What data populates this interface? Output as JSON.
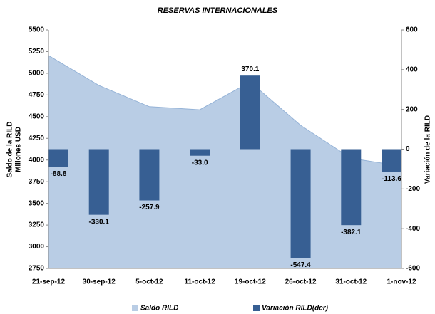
{
  "chart_data": {
    "type": "area-bar",
    "title": "RESERVAS INTERNACIONALES",
    "y_label": [
      "Saldo de la RILD",
      "Millones USD"
    ],
    "y2_label": "Variación de la RILD",
    "categories": [
      "21-sep-12",
      "30-sep-12",
      "5-oct-12",
      "11-oct-12",
      "19-oct-12",
      "26-oct-12",
      "31-oct-12",
      "1-nov-12"
    ],
    "series": [
      {
        "name": "Saldo RILD",
        "type": "area",
        "color": "#b9cde5",
        "values": [
          5205,
          4860,
          4615,
          4580,
          4900,
          4400,
          4020,
          3930
        ]
      },
      {
        "name": "Variación RILD(der)",
        "type": "bar",
        "axis": "y2",
        "color": "#375f93",
        "values": [
          -88.8,
          -330.1,
          -257.9,
          -33.0,
          370.1,
          -547.4,
          -382.1,
          -113.6
        ],
        "value_labels": [
          "-88.8",
          "-330.1",
          "-257.9",
          "-33.0",
          "370.1",
          "-547.4",
          "-382.1",
          "-113.6"
        ]
      }
    ],
    "ylim": [
      2750,
      5500
    ],
    "yticks": [
      2750,
      3000,
      3250,
      3500,
      3750,
      4000,
      4250,
      4500,
      4750,
      5000,
      5250,
      5500
    ],
    "y2lim": [
      -600,
      600
    ],
    "y2ticks": [
      -600,
      -400,
      -200,
      0,
      200,
      400,
      600
    ],
    "legend": "bottom"
  }
}
